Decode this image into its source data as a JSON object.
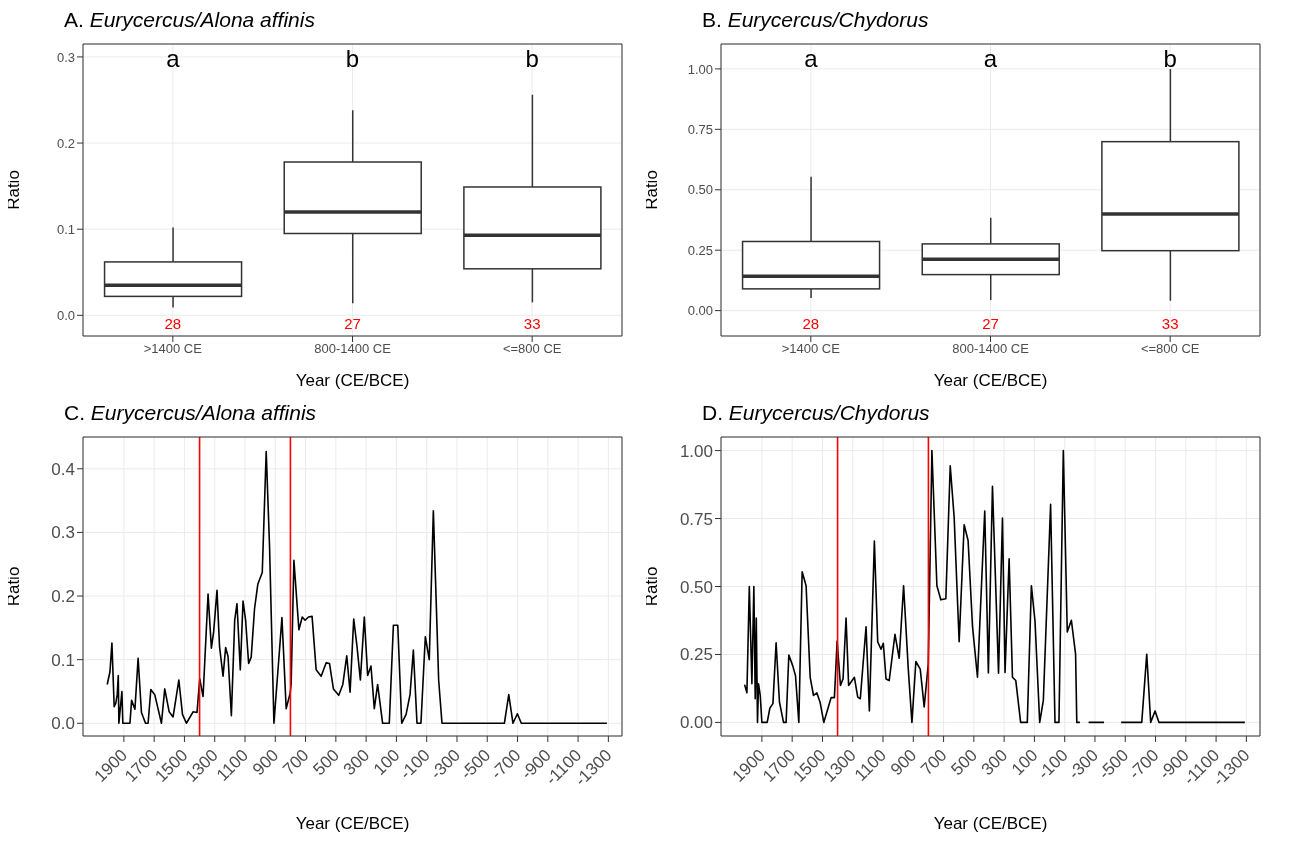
{
  "chart_data": [
    {
      "type": "box",
      "title": "A. Eurycercus/Alona affinis",
      "xlabel": "Year (CE/BCE)",
      "ylabel": "Ratio",
      "categories": [
        ">1400 CE",
        "800-1400 CE",
        "<=800 CE"
      ],
      "boxes": [
        {
          "low": 0.009,
          "q1": 0.022,
          "median": 0.035,
          "q3": 0.062,
          "high": 0.102
        },
        {
          "low": 0.014,
          "q1": 0.095,
          "median": 0.12,
          "q3": 0.178,
          "high": 0.238
        },
        {
          "low": 0.015,
          "q1": 0.054,
          "median": 0.093,
          "q3": 0.149,
          "high": 0.256
        }
      ],
      "ylim": [
        -0.024,
        0.315
      ],
      "yticks": [
        {
          "value": 0,
          "label": "0.0"
        },
        0.1,
        0.2,
        0.3
      ],
      "grid": true,
      "annotations": [
        "a",
        "b",
        "b",
        "28",
        "27",
        "33"
      ]
    },
    {
      "type": "box",
      "title": "B. Eurycercus/Chydorus",
      "xlabel": "Year (CE/BCE)",
      "ylabel": "Ratio",
      "categories": [
        ">1400 CE",
        "800-1400 CE",
        "<=800 CE"
      ],
      "boxes": [
        {
          "low": 0.052,
          "q1": 0.09,
          "median": 0.142,
          "q3": 0.286,
          "high": 0.554
        },
        {
          "low": 0.044,
          "q1": 0.149,
          "median": 0.212,
          "q3": 0.276,
          "high": 0.384
        },
        {
          "low": 0.041,
          "q1": 0.248,
          "median": 0.4,
          "q3": 0.699,
          "high": 1.0
        }
      ],
      "ylim": [
        -0.105,
        1.103
      ],
      "yticks": [
        {
          "value": 0,
          "label": "0.00"
        },
        {
          "value": 0.25,
          "label": "0.25"
        },
        {
          "value": 0.5,
          "label": "0.50"
        },
        {
          "value": 0.75,
          "label": "0.75"
        },
        {
          "value": 1,
          "label": "1.00"
        }
      ],
      "grid": true,
      "annotations": [
        "a",
        "a",
        "b",
        "28",
        "27",
        "33"
      ]
    },
    {
      "type": "line",
      "title": "C. Eurycercus/Alona affinis",
      "xlabel": "Year (CE/BCE)",
      "ylabel": "Ratio",
      "color": "#000000",
      "x": [
        2010,
        1992,
        1979,
        1964,
        1953,
        1944,
        1937,
        1933,
        1913,
        1907,
        1860,
        1849,
        1827,
        1806,
        1784,
        1757,
        1740,
        1722,
        1696,
        1652,
        1630,
        1601,
        1575,
        1537,
        1513,
        1487,
        1443,
        1417,
        1399,
        1377,
        1344,
        1322,
        1307,
        1285,
        1268,
        1245,
        1228,
        1212,
        1190,
        1168,
        1153,
        1131,
        1113,
        1096,
        1076,
        1059,
        1037,
        1015,
        986,
        960,
        938,
        909,
        883,
        856,
        828,
        801,
        795,
        777,
        744,
        722,
        703,
        681,
        657,
        630,
        597,
        564,
        542,
        516,
        481,
        454,
        428,
        406,
        382,
        360,
        338,
        312,
        290,
        268,
        246,
        224,
        191,
        147,
        120,
        91,
        65,
        36,
        10,
        -12,
        -36,
        -62,
        -91,
        -117,
        -144,
        -179,
        -201,
        -613,
        -642,
        -670,
        -699,
        -725,
        -1290
      ],
      "values": [
        0.061,
        0.081,
        0.126,
        0.026,
        0.032,
        0.045,
        0.075,
        0,
        0.05,
        0,
        0,
        0.036,
        0.022,
        0.102,
        0.017,
        0,
        0,
        0.053,
        0.045,
        0,
        0.054,
        0.018,
        0.01,
        0.068,
        0.014,
        0,
        0.018,
        0.017,
        0.07,
        0.042,
        0.203,
        0.118,
        0.144,
        0.209,
        0.12,
        0.074,
        0.119,
        0.105,
        0.012,
        0.162,
        0.188,
        0.084,
        0.192,
        0.162,
        0.094,
        0.104,
        0.18,
        0.219,
        0.237,
        0.427,
        0.279,
        0,
        0.081,
        0.166,
        0.023,
        0.048,
        0.063,
        0.256,
        0.147,
        0.167,
        0.162,
        0.167,
        0.168,
        0.084,
        0.074,
        0.095,
        0.094,
        0.054,
        0.044,
        0.061,
        0.106,
        0.049,
        0.164,
        0.12,
        0.068,
        0.167,
        0.075,
        0.09,
        0.023,
        0.061,
        0,
        0,
        0.154,
        0.154,
        0,
        0.014,
        0.045,
        0.115,
        0,
        0,
        0.136,
        0.1,
        0.334,
        0.068,
        0,
        0,
        0.045,
        0,
        0.015,
        0,
        0
      ],
      "xlim": [
        2170,
        -1390
      ],
      "xticks": [
        1900,
        1700,
        1500,
        1300,
        1100,
        900,
        700,
        500,
        300,
        100,
        -100,
        -300,
        -500,
        -700,
        -900,
        -1100,
        -1300
      ],
      "ylim": [
        -0.02,
        0.45
      ],
      "yticks": [
        {
          "value": 0,
          "label": "0.0"
        },
        0.1,
        0.2,
        0.3,
        0.4
      ],
      "grid": true,
      "ref_lines": [
        {
          "axis": "x",
          "value": 1400,
          "color": "#ff0000"
        },
        {
          "axis": "x",
          "value": 800,
          "color": "#ff0000"
        }
      ]
    },
    {
      "type": "line",
      "title": "D. Eurycercus/Chydorus",
      "xlabel": "Year (CE/BCE)",
      "ylabel": "Ratio",
      "color": "#000000",
      "x": [
        2014,
        1999,
        1983,
        1966,
        1953,
        1944,
        1937,
        1929,
        1922,
        1911,
        1900,
        1865,
        1847,
        1827,
        1806,
        1784,
        1757,
        1740,
        1722,
        1696,
        1678,
        1656,
        1634,
        1608,
        1581,
        1559,
        1537,
        1515,
        1491,
        1443,
        1421,
        1403,
        1381,
        1364,
        1344,
        1327,
        1289,
        1267,
        1250,
        1212,
        1190,
        1157,
        1135,
        1113,
        1098,
        1080,
        1059,
        1021,
        993,
        964,
        933,
        909,
        883,
        854,
        828,
        801,
        777,
        744,
        718,
        685,
        656,
        630,
        597,
        564,
        538,
        509,
        476,
        428,
        404,
        377,
        337,
        311,
        294,
        267,
        245,
        223,
        191,
        147,
        120,
        96,
        65,
        41,
        -7,
        -36,
        -62,
        -91,
        -117,
        -144,
        -172,
        -180,
        -200,
        -230,
        -258,
        -360,
        -420,
        -473,
        -609,
        -642,
        -668,
        -697,
        -723,
        -1290
      ],
      "values": [
        0.139,
        0.109,
        0.5,
        0.142,
        0.5,
        0.087,
        0.384,
        0,
        0.142,
        0.1,
        0,
        0,
        0.053,
        0.069,
        0.293,
        0.075,
        0,
        0,
        0.248,
        0.208,
        0.172,
        0,
        0.554,
        0.503,
        0.166,
        0.099,
        0.109,
        0.073,
        0,
        0.091,
        0.091,
        0.299,
        0.136,
        0.16,
        0.384,
        0.136,
        0.166,
        0.093,
        0.087,
        0.352,
        0.042,
        0.667,
        0.296,
        0.269,
        0.291,
        0.16,
        0.154,
        0.324,
        0.236,
        0.503,
        0.196,
        0,
        0.224,
        0.196,
        0.057,
        0.215,
        1,
        0.503,
        0.451,
        0.455,
        0.944,
        0.754,
        0.297,
        0.727,
        0.669,
        0.354,
        0.166,
        0.778,
        0.182,
        0.869,
        0.181,
        0.752,
        0.184,
        0.602,
        0.166,
        0.154,
        0,
        0,
        0.503,
        0.372,
        0,
        0.081,
        0.802,
        0,
        0,
        1,
        0.333,
        0.376,
        0.251,
        0,
        0,
        null,
        0,
        0,
        null,
        0,
        0,
        0.251,
        0,
        0.042,
        0,
        0
      ],
      "xlim": [
        2170,
        -1390
      ],
      "xticks": [
        1900,
        1700,
        1500,
        1300,
        1100,
        900,
        700,
        500,
        300,
        100,
        -100,
        -300,
        -500,
        -700,
        -900,
        -1100,
        -1300
      ],
      "ylim": [
        -0.05,
        1.05
      ],
      "yticks": [
        {
          "value": 0,
          "label": "0.00"
        },
        {
          "value": 0.25,
          "label": "0.25"
        },
        {
          "value": 0.5,
          "label": "0.50"
        },
        {
          "value": 0.75,
          "label": "0.75"
        },
        {
          "value": 1,
          "label": "1.00"
        }
      ],
      "grid": true,
      "ref_lines": [
        {
          "axis": "x",
          "value": 1400,
          "color": "#ff0000"
        },
        {
          "axis": "x",
          "value": 800,
          "color": "#ff0000"
        }
      ]
    }
  ]
}
